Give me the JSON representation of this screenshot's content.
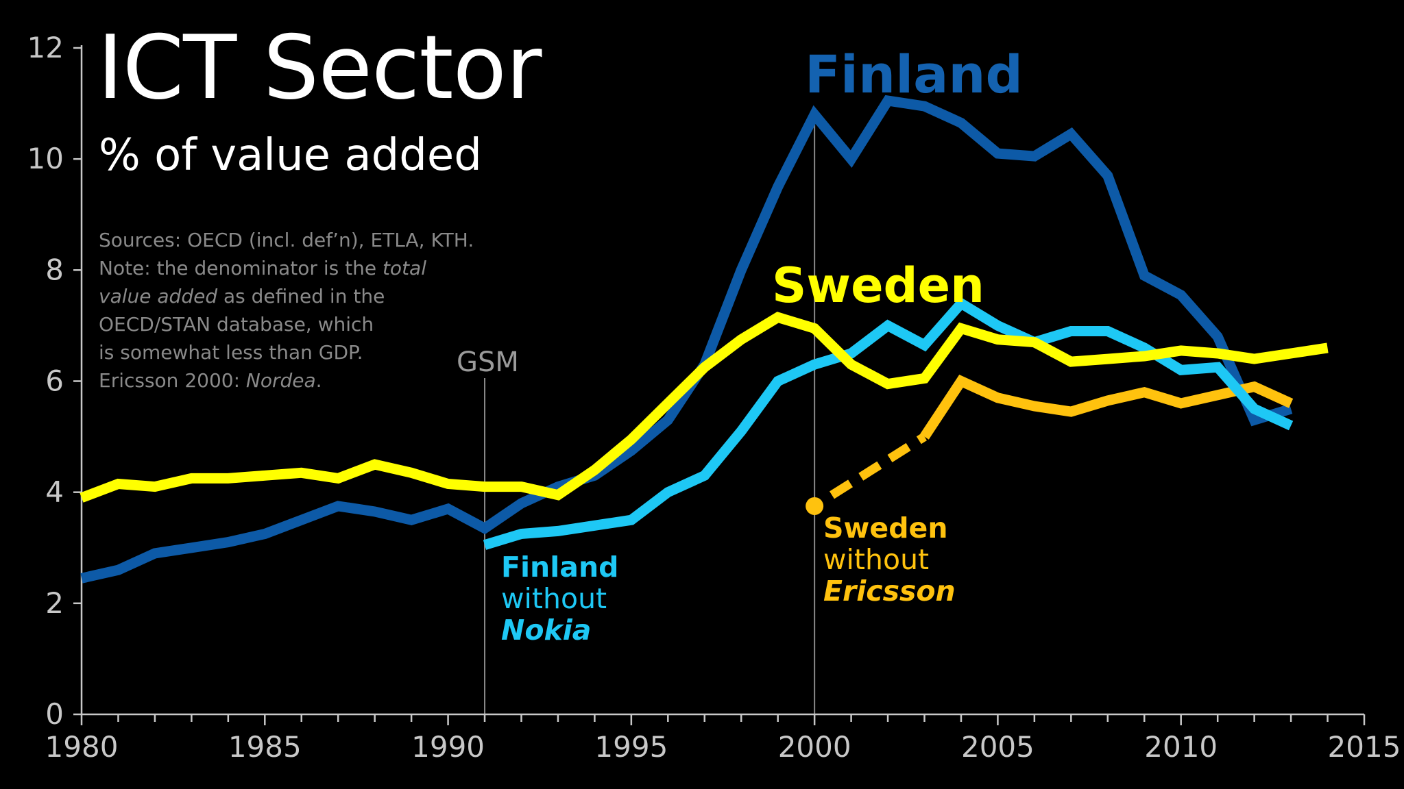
{
  "header": {
    "title": "ICT Sector",
    "subtitle": "% of value added"
  },
  "note": {
    "l1": "Sources: OECD (incl. def’n), ETLA, KTH.",
    "l2a": "Note: the denominator is the ",
    "l2b": "total",
    "l3a": "value added",
    "l3b": " as defined in the",
    "l4": "OECD/STAN database, which",
    "l5": "is somewhat less than GDP.",
    "l6a": "Ericsson 2000: ",
    "l6b": "Nordea",
    "l6c": "."
  },
  "annotations": {
    "gsm": "GSM",
    "finland": "Finland",
    "sweden": "Sweden",
    "fwn_1": "Finland",
    "fwn_2": "without",
    "fwn_3": "Nokia",
    "swe_1": "Sweden",
    "swe_2": "without",
    "swe_3": "Ericsson"
  },
  "chart_data": {
    "type": "line",
    "title": "ICT Sector",
    "subtitle": "% of value added",
    "xlim": [
      1980,
      2015
    ],
    "ylim": [
      0,
      12
    ],
    "x_ticks": [
      1980,
      1985,
      1990,
      1995,
      2000,
      2005,
      2010,
      2015
    ],
    "y_ticks": [
      0,
      2,
      4,
      6,
      8,
      10,
      12
    ],
    "grid": false,
    "vertical_markers": [
      {
        "x": 1991,
        "label": "GSM"
      },
      {
        "x": 2000,
        "label": ""
      }
    ],
    "series": [
      {
        "name": "Finland",
        "color": "#0d5aa7",
        "points": [
          [
            1980,
            2.45
          ],
          [
            1981,
            2.6
          ],
          [
            1982,
            2.9
          ],
          [
            1983,
            3.0
          ],
          [
            1984,
            3.1
          ],
          [
            1985,
            3.25
          ],
          [
            1986,
            3.5
          ],
          [
            1987,
            3.75
          ],
          [
            1988,
            3.65
          ],
          [
            1989,
            3.5
          ],
          [
            1990,
            3.7
          ],
          [
            1991,
            3.35
          ],
          [
            1992,
            3.8
          ],
          [
            1993,
            4.1
          ],
          [
            1994,
            4.3
          ],
          [
            1995,
            4.75
          ],
          [
            1996,
            5.3
          ],
          [
            1997,
            6.3
          ],
          [
            1998,
            8.0
          ],
          [
            1999,
            9.5
          ],
          [
            2000,
            10.8
          ],
          [
            2001,
            10.0
          ],
          [
            2002,
            11.05
          ],
          [
            2003,
            10.95
          ],
          [
            2004,
            10.65
          ],
          [
            2005,
            10.1
          ],
          [
            2006,
            10.05
          ],
          [
            2007,
            10.45
          ],
          [
            2008,
            9.7
          ],
          [
            2009,
            7.9
          ],
          [
            2010,
            7.55
          ],
          [
            2011,
            6.8
          ],
          [
            2012,
            5.3
          ],
          [
            2013,
            5.5
          ]
        ]
      },
      {
        "name": "Finland without Nokia",
        "color": "#1ec8f5",
        "points": [
          [
            1991,
            3.05
          ],
          [
            1992,
            3.25
          ],
          [
            1993,
            3.3
          ],
          [
            1994,
            3.4
          ],
          [
            1995,
            3.5
          ],
          [
            1996,
            4.0
          ],
          [
            1997,
            4.3
          ],
          [
            1998,
            5.1
          ],
          [
            1999,
            6.0
          ],
          [
            2000,
            6.3
          ],
          [
            2001,
            6.5
          ],
          [
            2002,
            7.0
          ],
          [
            2003,
            6.65
          ],
          [
            2004,
            7.4
          ],
          [
            2005,
            7.0
          ],
          [
            2006,
            6.7
          ],
          [
            2007,
            6.9
          ],
          [
            2008,
            6.9
          ],
          [
            2009,
            6.6
          ],
          [
            2010,
            6.2
          ],
          [
            2011,
            6.25
          ],
          [
            2012,
            5.5
          ],
          [
            2013,
            5.2
          ]
        ]
      },
      {
        "name": "Sweden",
        "color": "#ffff00",
        "points": [
          [
            1980,
            3.9
          ],
          [
            1981,
            4.15
          ],
          [
            1982,
            4.1
          ],
          [
            1983,
            4.25
          ],
          [
            1984,
            4.25
          ],
          [
            1985,
            4.3
          ],
          [
            1986,
            4.35
          ],
          [
            1987,
            4.25
          ],
          [
            1988,
            4.5
          ],
          [
            1989,
            4.35
          ],
          [
            1990,
            4.15
          ],
          [
            1991,
            4.1
          ],
          [
            1992,
            4.1
          ],
          [
            1993,
            3.95
          ],
          [
            1994,
            4.4
          ],
          [
            1995,
            4.95
          ],
          [
            1996,
            5.6
          ],
          [
            1997,
            6.25
          ],
          [
            1998,
            6.75
          ],
          [
            1999,
            7.15
          ],
          [
            2000,
            6.95
          ],
          [
            2001,
            6.3
          ],
          [
            2002,
            5.95
          ],
          [
            2003,
            6.05
          ],
          [
            2004,
            6.95
          ],
          [
            2005,
            6.75
          ],
          [
            2006,
            6.7
          ],
          [
            2007,
            6.35
          ],
          [
            2008,
            6.4
          ],
          [
            2009,
            6.45
          ],
          [
            2010,
            6.55
          ],
          [
            2011,
            6.5
          ],
          [
            2012,
            6.4
          ],
          [
            2013,
            6.5
          ],
          [
            2014,
            6.6
          ]
        ]
      },
      {
        "name": "Sweden without Ericsson",
        "color": "#ffc20e",
        "estimate_points": [
          [
            2000,
            3.75
          ],
          [
            2003,
            5.0
          ]
        ],
        "points": [
          [
            2003,
            5.0
          ],
          [
            2004,
            6.0
          ],
          [
            2005,
            5.7
          ],
          [
            2006,
            5.55
          ],
          [
            2007,
            5.45
          ],
          [
            2008,
            5.65
          ],
          [
            2009,
            5.8
          ],
          [
            2010,
            5.6
          ],
          [
            2011,
            5.75
          ],
          [
            2012,
            5.9
          ],
          [
            2013,
            5.6
          ]
        ]
      }
    ]
  }
}
